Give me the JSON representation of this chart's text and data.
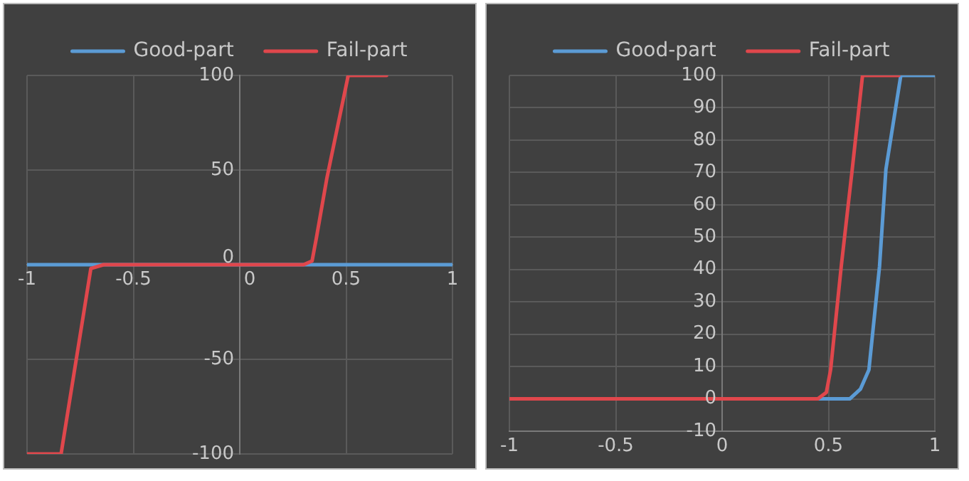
{
  "chart_data": [
    {
      "type": "line",
      "xlim": [
        -1,
        1
      ],
      "xticks": [
        -1,
        -0.5,
        0,
        0.5,
        1
      ],
      "ylim": [
        -100,
        100
      ],
      "yticks": [
        -100,
        -50,
        0,
        50,
        100
      ],
      "grid": true,
      "legend": "top",
      "marker": "none",
      "line_style": "solid",
      "series": [
        {
          "name": "Good-part",
          "color": "#5b9bd5",
          "x": [
            -1,
            1
          ],
          "values": [
            0,
            0
          ]
        },
        {
          "name": "Fail-part",
          "color": "#e0474c",
          "x": [
            -1,
            -0.84,
            -0.7,
            -0.64,
            0.3,
            0.34,
            0.36,
            0.41,
            0.46,
            0.51,
            0.69
          ],
          "values": [
            -100,
            -100,
            -2,
            0,
            0,
            2,
            14,
            46,
            73,
            100,
            100
          ]
        }
      ]
    },
    {
      "type": "line",
      "xlim": [
        -1,
        1
      ],
      "xticks": [
        -1,
        -0.5,
        0,
        0.5,
        1
      ],
      "ylim": [
        -10,
        100
      ],
      "yticks": [
        -10,
        0,
        10,
        20,
        30,
        40,
        50,
        60,
        70,
        80,
        90,
        100
      ],
      "grid": true,
      "legend": "top",
      "marker": "none",
      "line_style": "solid",
      "series": [
        {
          "name": "Good-part",
          "color": "#5b9bd5",
          "x": [
            -1,
            0.6,
            0.65,
            0.69,
            0.74,
            0.77,
            0.84,
            1
          ],
          "values": [
            0,
            0,
            3,
            9,
            41,
            71,
            100,
            100
          ]
        },
        {
          "name": "Fail-part",
          "color": "#e0474c",
          "x": [
            -1,
            0.45,
            0.49,
            0.51,
            0.56,
            0.61,
            0.66,
            0.83
          ],
          "values": [
            0,
            0,
            2,
            9,
            41,
            70,
            100,
            100
          ]
        }
      ]
    }
  ]
}
